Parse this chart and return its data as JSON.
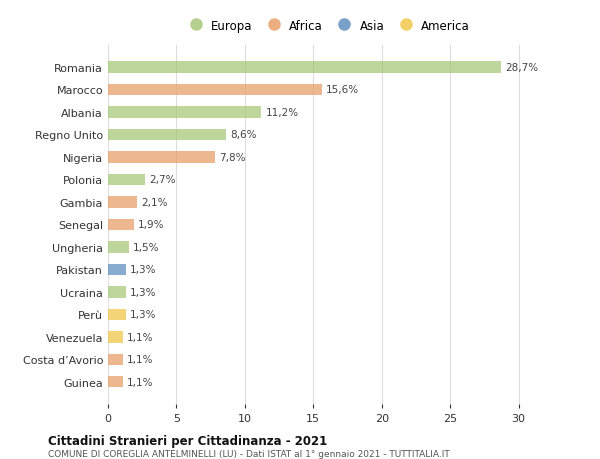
{
  "countries": [
    "Romania",
    "Marocco",
    "Albania",
    "Regno Unito",
    "Nigeria",
    "Polonia",
    "Gambia",
    "Senegal",
    "Ungheria",
    "Pakistan",
    "Ucraina",
    "Perù",
    "Venezuela",
    "Costa d’Avorio",
    "Guinea"
  ],
  "values": [
    28.7,
    15.6,
    11.2,
    8.6,
    7.8,
    2.7,
    2.1,
    1.9,
    1.5,
    1.3,
    1.3,
    1.3,
    1.1,
    1.1,
    1.1
  ],
  "labels": [
    "28,7%",
    "15,6%",
    "11,2%",
    "8,6%",
    "7,8%",
    "2,7%",
    "2,1%",
    "1,9%",
    "1,5%",
    "1,3%",
    "1,3%",
    "1,3%",
    "1,1%",
    "1,1%",
    "1,1%"
  ],
  "continents": [
    "Europa",
    "Africa",
    "Europa",
    "Europa",
    "Africa",
    "Europa",
    "Africa",
    "Africa",
    "Europa",
    "Asia",
    "Europa",
    "America",
    "America",
    "Africa",
    "Africa"
  ],
  "colors": {
    "Europa": "#a8c87a",
    "Africa": "#e8a06a",
    "Asia": "#6090c0",
    "America": "#f0c84a"
  },
  "legend_order": [
    "Europa",
    "Africa",
    "Asia",
    "America"
  ],
  "title": "Cittadini Stranieri per Cittadinanza - 2021",
  "subtitle": "COMUNE DI COREGLIA ANTELMINELLI (LU) - Dati ISTAT al 1° gennaio 2021 - TUTTITALIA.IT",
  "xlim": [
    0,
    32
  ],
  "xticks": [
    0,
    5,
    10,
    15,
    20,
    25,
    30
  ],
  "background_color": "#ffffff",
  "grid_color": "#dddddd"
}
